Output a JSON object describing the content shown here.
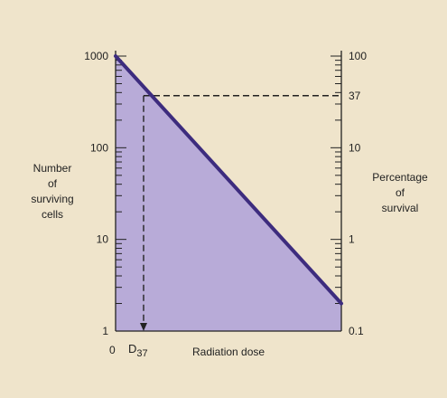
{
  "chart_data": {
    "type": "line",
    "title": "",
    "xlabel": "Radiation dose",
    "x_ticks": [
      "0",
      "D37"
    ],
    "left_axis": {
      "label": "Number of surviving cells",
      "scale": "log",
      "range": [
        1,
        1000
      ],
      "ticks": [
        "1",
        "10",
        "100",
        "1000"
      ]
    },
    "right_axis": {
      "label": "Percentage of survival",
      "scale": "log",
      "range": [
        0.1,
        100
      ],
      "ticks": [
        "0.1",
        "1",
        "10",
        "37",
        "100"
      ]
    },
    "series": [
      {
        "line_points": [
          {
            "x": 0,
            "y": 1000
          },
          {
            "x": 1,
            "y": 2
          }
        ]
      }
    ],
    "annotation": {
      "survival_percent": 37,
      "cells": 370
    },
    "grid": false,
    "legend": "none",
    "colors": {
      "fill": "#b8abd8",
      "line": "#3d2c7e",
      "background": "#efe4cb",
      "dashed": "#222222"
    }
  },
  "labels": {
    "y_left": [
      "Number",
      "of",
      "surviving",
      "cells"
    ],
    "y_right": [
      "Percentage",
      "of",
      "survival"
    ],
    "x_zero": "0",
    "d37_main": "D",
    "d37_sub": "37",
    "xlabel": "Radiation dose"
  }
}
